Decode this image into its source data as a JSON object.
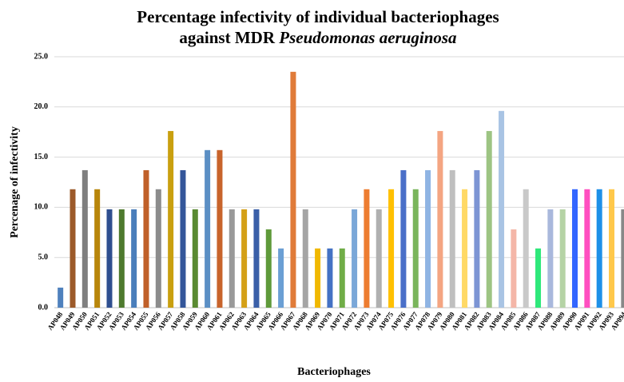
{
  "chart_data": {
    "type": "bar",
    "title": [
      "Percentage infectivity of individual bacteriophages",
      "against MDR "
    ],
    "title_italic": "Pseudomonas aeruginosa",
    "x_label": "Bacteriophages",
    "y_label": "Percenage of infectivity",
    "categories": [
      "AP048",
      "AP049",
      "AP050",
      "AP051",
      "AP052",
      "AP053",
      "AP054",
      "AP055",
      "AP056",
      "AP057",
      "AP058",
      "AP059",
      "AP060",
      "AP061",
      "AP062",
      "AP063",
      "AP064",
      "AP065",
      "AP066",
      "AP067",
      "AP068",
      "AP069",
      "AP070",
      "AP071",
      "AP072",
      "AP073",
      "AP074",
      "AP075",
      "AP076",
      "AP077",
      "AP078",
      "AP079",
      "AP080",
      "AP081",
      "AP082",
      "AP083",
      "AP084",
      "AP085",
      "AP086",
      "AP087",
      "AP088",
      "AP089",
      "AP090",
      "AP091",
      "AP092",
      "AP093",
      "AP094"
    ],
    "values": [
      2.0,
      11.8,
      13.7,
      11.8,
      9.8,
      9.8,
      9.8,
      13.7,
      11.8,
      17.6,
      13.7,
      9.8,
      15.7,
      15.7,
      9.8,
      9.8,
      9.8,
      7.8,
      5.9,
      23.5,
      9.8,
      5.9,
      5.9,
      5.9,
      9.8,
      11.8,
      9.8,
      11.8,
      13.7,
      11.8,
      13.7,
      17.6,
      13.7,
      11.8,
      13.7,
      17.6,
      19.6,
      7.8,
      11.8,
      5.9,
      9.8,
      9.8,
      11.8,
      11.8,
      11.8,
      11.8,
      9.8
    ],
    "colors": [
      "#4f81bd",
      "#9c5a2a",
      "#7f7f7f",
      "#b8860b",
      "#2f4f8f",
      "#4e7a2e",
      "#4a7ebb",
      "#c0602a",
      "#8c8c8c",
      "#c9a010",
      "#34569a",
      "#5a8a32",
      "#5b8fc4",
      "#c8642c",
      "#999999",
      "#d4a017",
      "#3a5fa8",
      "#5f9a3a",
      "#6b9fd4",
      "#e07b39",
      "#a5a5a5",
      "#f0b800",
      "#4472c4",
      "#70ad47",
      "#7aa7d8",
      "#ed7d31",
      "#b0b0b0",
      "#ffc000",
      "#4a6fc8",
      "#7ab55c",
      "#8fb4e3",
      "#f4a582",
      "#bfbfbf",
      "#ffd966",
      "#7d95d4",
      "#9dc483",
      "#a9c4e4",
      "#f4b6a8",
      "#c9c9c9",
      "#2ee87a",
      "#a9b8dc",
      "#b5d3a5",
      "#3366ff",
      "#ff4fc0",
      "#1e90e8",
      "#ffc84a",
      "#888888"
    ],
    "ylim": [
      0,
      25
    ],
    "yticks": [
      {
        "value": 0,
        "label": "0.0"
      },
      {
        "value": 5,
        "label": "5.0"
      },
      {
        "value": 10,
        "label": "10.0"
      },
      {
        "value": 15,
        "label": "15.0"
      },
      {
        "value": 20,
        "label": "20.0"
      },
      {
        "value": 25,
        "label": "25.0"
      }
    ],
    "grid": true
  }
}
